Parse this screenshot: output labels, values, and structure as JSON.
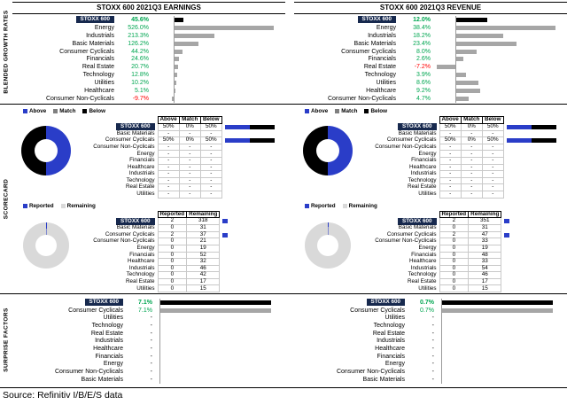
{
  "page": {
    "source": "Source: Refinitiv I/B/E/S data"
  },
  "section_labels": [
    "BLENDED GROWTH RATES",
    "SCORECARD",
    "SURPRISE FACTORS"
  ],
  "index_chip": "STOXX 600",
  "colors": {
    "navy": "#17294E",
    "green": "#00A651",
    "red": "#FF0000",
    "blue": "#2A3DC8",
    "black": "#000000",
    "gray_bar": "#A6A6A6",
    "match_gray": "#7F7F7F",
    "light_gray": "#D9D9D9"
  },
  "chart_data": [
    {
      "id": "earnings_growth",
      "type": "bar",
      "title": "STOXX 600 2021Q3 EARNINGS",
      "categories": [
        "STOXX 600",
        "Energy",
        "Industrials",
        "Basic Materials",
        "Consumer Cyclicals",
        "Financials",
        "Real Estate",
        "Technology",
        "Utilities",
        "Healthcare",
        "Consumer Non-Cyclicals"
      ],
      "values": [
        45.6,
        526.0,
        213.3,
        126.2,
        44.2,
        24.6,
        20.7,
        12.8,
        10.2,
        5.1,
        -9.7
      ],
      "value_labels": [
        "45.6%",
        "526.0%",
        "213.3%",
        "126.2%",
        "44.2%",
        "24.6%",
        "20.7%",
        "12.8%",
        "10.2%",
        "5.1%",
        "-9.7%"
      ],
      "xlabel": "",
      "ylabel": "",
      "legend_position": "none",
      "grid": false
    },
    {
      "id": "revenue_growth",
      "type": "bar",
      "title": "STOXX 600 2021Q3 REVENUE",
      "categories": [
        "STOXX 600",
        "Energy",
        "Industrials",
        "Basic Materials",
        "Consumer Cyclicals",
        "Financials",
        "Real Estate",
        "Technology",
        "Utilities",
        "Healthcare",
        "Consumer Non-Cyclicals"
      ],
      "values": [
        12.0,
        38.4,
        18.2,
        23.4,
        8.0,
        2.6,
        -7.2,
        3.9,
        8.6,
        9.2,
        4.7
      ],
      "value_labels": [
        "12.0%",
        "38.4%",
        "18.2%",
        "23.4%",
        "8.0%",
        "2.6%",
        "-7.2%",
        "3.9%",
        "8.6%",
        "9.2%",
        "4.7%"
      ],
      "xlabel": "",
      "ylabel": "",
      "legend_position": "none",
      "grid": false
    },
    {
      "id": "earnings_scorecard",
      "type": "pie",
      "legend": [
        "Above",
        "Match",
        "Below"
      ],
      "headers": [
        "Above",
        "Match",
        "Below"
      ],
      "pie": {
        "Above": 50,
        "Match": 0,
        "Below": 50
      },
      "rows": [
        {
          "label": "STOXX 600",
          "above": "50%",
          "match": "0%",
          "below": "50%",
          "above_v": 50,
          "match_v": 0,
          "below_v": 50
        },
        {
          "label": "Basic Materials",
          "above": "-",
          "match": "-",
          "below": "-"
        },
        {
          "label": "Consumer Cyclicals",
          "above": "50%",
          "match": "0%",
          "below": "50%",
          "above_v": 50,
          "match_v": 0,
          "below_v": 50
        },
        {
          "label": "Consumer Non-Cyclicals",
          "above": "-",
          "match": "-",
          "below": "-"
        },
        {
          "label": "Energy",
          "above": "-",
          "match": "-",
          "below": "-"
        },
        {
          "label": "Financials",
          "above": "-",
          "match": "-",
          "below": "-"
        },
        {
          "label": "Healthcare",
          "above": "-",
          "match": "-",
          "below": "-"
        },
        {
          "label": "Industrials",
          "above": "-",
          "match": "-",
          "below": "-"
        },
        {
          "label": "Technology",
          "above": "-",
          "match": "-",
          "below": "-"
        },
        {
          "label": "Real Estate",
          "above": "-",
          "match": "-",
          "below": "-"
        },
        {
          "label": "Utilities",
          "above": "-",
          "match": "-",
          "below": "-"
        }
      ]
    },
    {
      "id": "earnings_reported",
      "type": "pie",
      "legend": [
        "Reported",
        "Remaining"
      ],
      "headers": [
        "Reported",
        "Remaining"
      ],
      "pie": {
        "Reported": 2,
        "Remaining": 318
      },
      "rows": [
        {
          "label": "STOXX 600",
          "reported": 2,
          "remaining": 318
        },
        {
          "label": "Basic Materials",
          "reported": 0,
          "remaining": 31
        },
        {
          "label": "Consumer Cyclicals",
          "reported": 2,
          "remaining": 37
        },
        {
          "label": "Consumer Non-Cyclicals",
          "reported": 0,
          "remaining": 21
        },
        {
          "label": "Energy",
          "reported": 0,
          "remaining": 19
        },
        {
          "label": "Financials",
          "reported": 0,
          "remaining": 52
        },
        {
          "label": "Healthcare",
          "reported": 0,
          "remaining": 32
        },
        {
          "label": "Industrials",
          "reported": 0,
          "remaining": 46
        },
        {
          "label": "Technology",
          "reported": 0,
          "remaining": 42
        },
        {
          "label": "Real Estate",
          "reported": 0,
          "remaining": 17
        },
        {
          "label": "Utilities",
          "reported": 0,
          "remaining": 15
        }
      ]
    },
    {
      "id": "revenue_scorecard",
      "type": "pie",
      "legend": [
        "Above",
        "Match",
        "Below"
      ],
      "headers": [
        "Above",
        "Match",
        "Below"
      ],
      "pie": {
        "Above": 50,
        "Match": 0,
        "Below": 50
      },
      "rows": [
        {
          "label": "STOXX 600",
          "above": "50%",
          "match": "0%",
          "below": "50%",
          "above_v": 50,
          "match_v": 0,
          "below_v": 50
        },
        {
          "label": "Basic Materials",
          "above": "-",
          "match": "-",
          "below": "-"
        },
        {
          "label": "Consumer Cyclicals",
          "above": "50%",
          "match": "0%",
          "below": "50%",
          "above_v": 50,
          "match_v": 0,
          "below_v": 50
        },
        {
          "label": "Consumer Non-Cyclicals",
          "above": "-",
          "match": "-",
          "below": "-"
        },
        {
          "label": "Energy",
          "above": "-",
          "match": "-",
          "below": "-"
        },
        {
          "label": "Financials",
          "above": "-",
          "match": "-",
          "below": "-"
        },
        {
          "label": "Healthcare",
          "above": "-",
          "match": "-",
          "below": "-"
        },
        {
          "label": "Industrials",
          "above": "-",
          "match": "-",
          "below": "-"
        },
        {
          "label": "Technology",
          "above": "-",
          "match": "-",
          "below": "-"
        },
        {
          "label": "Real Estate",
          "above": "-",
          "match": "-",
          "below": "-"
        },
        {
          "label": "Utilities",
          "above": "-",
          "match": "-",
          "below": "-"
        }
      ]
    },
    {
      "id": "revenue_reported",
      "type": "pie",
      "legend": [
        "Reported",
        "Remaining"
      ],
      "headers": [
        "Reported",
        "Remaining"
      ],
      "pie": {
        "Reported": 2,
        "Remaining": 351
      },
      "rows": [
        {
          "label": "STOXX 600",
          "reported": 2,
          "remaining": 351
        },
        {
          "label": "Basic Materials",
          "reported": 0,
          "remaining": 31
        },
        {
          "label": "Consumer Cyclicals",
          "reported": 2,
          "remaining": 47
        },
        {
          "label": "Consumer Non-Cyclicals",
          "reported": 0,
          "remaining": 33
        },
        {
          "label": "Energy",
          "reported": 0,
          "remaining": 19
        },
        {
          "label": "Financials",
          "reported": 0,
          "remaining": 48
        },
        {
          "label": "Healthcare",
          "reported": 0,
          "remaining": 33
        },
        {
          "label": "Industrials",
          "reported": 0,
          "remaining": 54
        },
        {
          "label": "Technology",
          "reported": 0,
          "remaining": 46
        },
        {
          "label": "Real Estate",
          "reported": 0,
          "remaining": 17
        },
        {
          "label": "Utilities",
          "reported": 0,
          "remaining": 15
        }
      ]
    },
    {
      "id": "earnings_surprise",
      "type": "bar",
      "categories": [
        "STOXX 600",
        "Consumer Cyclicals",
        "Utilities",
        "Technology",
        "Real Estate",
        "Industrials",
        "Healthcare",
        "Financials",
        "Energy",
        "Consumer Non-Cyclicals",
        "Basic Materials"
      ],
      "values": [
        7.1,
        7.1,
        null,
        null,
        null,
        null,
        null,
        null,
        null,
        null,
        null
      ],
      "value_labels": [
        "7.1%",
        "7.1%",
        "-",
        "-",
        "-",
        "-",
        "-",
        "-",
        "-",
        "-",
        "-"
      ],
      "xlabel": "",
      "ylabel": "",
      "legend_position": "none",
      "grid": false
    },
    {
      "id": "revenue_surprise",
      "type": "bar",
      "categories": [
        "STOXX 600",
        "Consumer Cyclicals",
        "Utilities",
        "Technology",
        "Real Estate",
        "Industrials",
        "Healthcare",
        "Financials",
        "Energy",
        "Consumer Non-Cyclicals",
        "Basic Materials"
      ],
      "values": [
        0.7,
        0.7,
        null,
        null,
        null,
        null,
        null,
        null,
        null,
        null,
        null
      ],
      "value_labels": [
        "0.7%",
        "0.7%",
        "-",
        "-",
        "-",
        "-",
        "-",
        "-",
        "-",
        "-",
        "-"
      ],
      "xlabel": "",
      "ylabel": "",
      "legend_position": "none",
      "grid": false
    }
  ]
}
